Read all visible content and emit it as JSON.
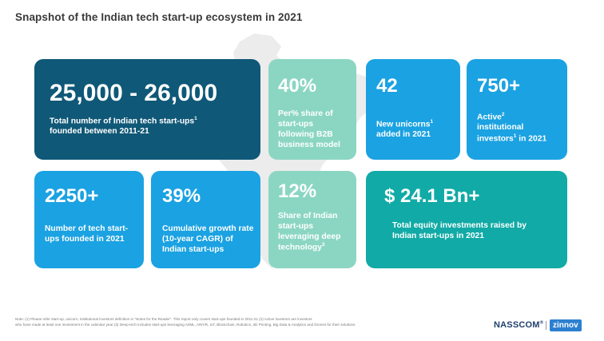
{
  "title": "Snapshot of the Indian tech start-up ecosystem in 2021",
  "colors": {
    "navy": "#0f5877",
    "blue": "#1ba2e2",
    "mint": "#8bd6c3",
    "teal": "#11aaa6",
    "map": "#ececec"
  },
  "tiles": {
    "total_startups": {
      "value": "25,000 - 26,000",
      "desc_a": "Total number of Indian tech start-ups",
      "desc_sup": "1",
      "desc_b": "founded between 2011-21"
    },
    "b2b_share": {
      "value": "40%",
      "desc": "Per% share of start-ups following B2B business model"
    },
    "unicorns": {
      "value": "42",
      "desc_a": "New unicorns",
      "desc_sup": "1",
      "desc_b": "added in 2021"
    },
    "investors": {
      "value": "750+",
      "desc_a": "Active",
      "desc_sup1": "2",
      "desc_b": "institutional investors",
      "desc_sup2": "1",
      "desc_c": "in 2021"
    },
    "founded_2021": {
      "value": "2250+",
      "desc": "Number of tech start-ups founded in 2021"
    },
    "cagr": {
      "value": "39%",
      "desc": "Cumulative growth rate (10-year CAGR) of Indian start-ups"
    },
    "deep_tech": {
      "value": "12%",
      "desc_a": "Share of Indian start-ups leveraging deep technology",
      "desc_sup": "3"
    },
    "equity": {
      "value": "$ 24.1 Bn+",
      "desc": "Total equity investments raised by Indian start-ups in 2021"
    }
  },
  "footnote": {
    "line1": "Note: (1) Please refer start-up, unicorn, institutional investors definition in \"Notes for the Reader\". This report only covers start-ups founded in 2011-21 (2) Active investors are investors",
    "line2": "who have made at least one investment in the calendar year (3) Deep-tech includes start-ups leveraging AI/ML, AR/VR, IoT, Blockchain, Robotics, 3D Printing, Big Data & Analytics and Drones for their solutions"
  },
  "logos": {
    "nasscom": "NASSCOM",
    "reg": "®",
    "zinnov": "zinnov"
  }
}
